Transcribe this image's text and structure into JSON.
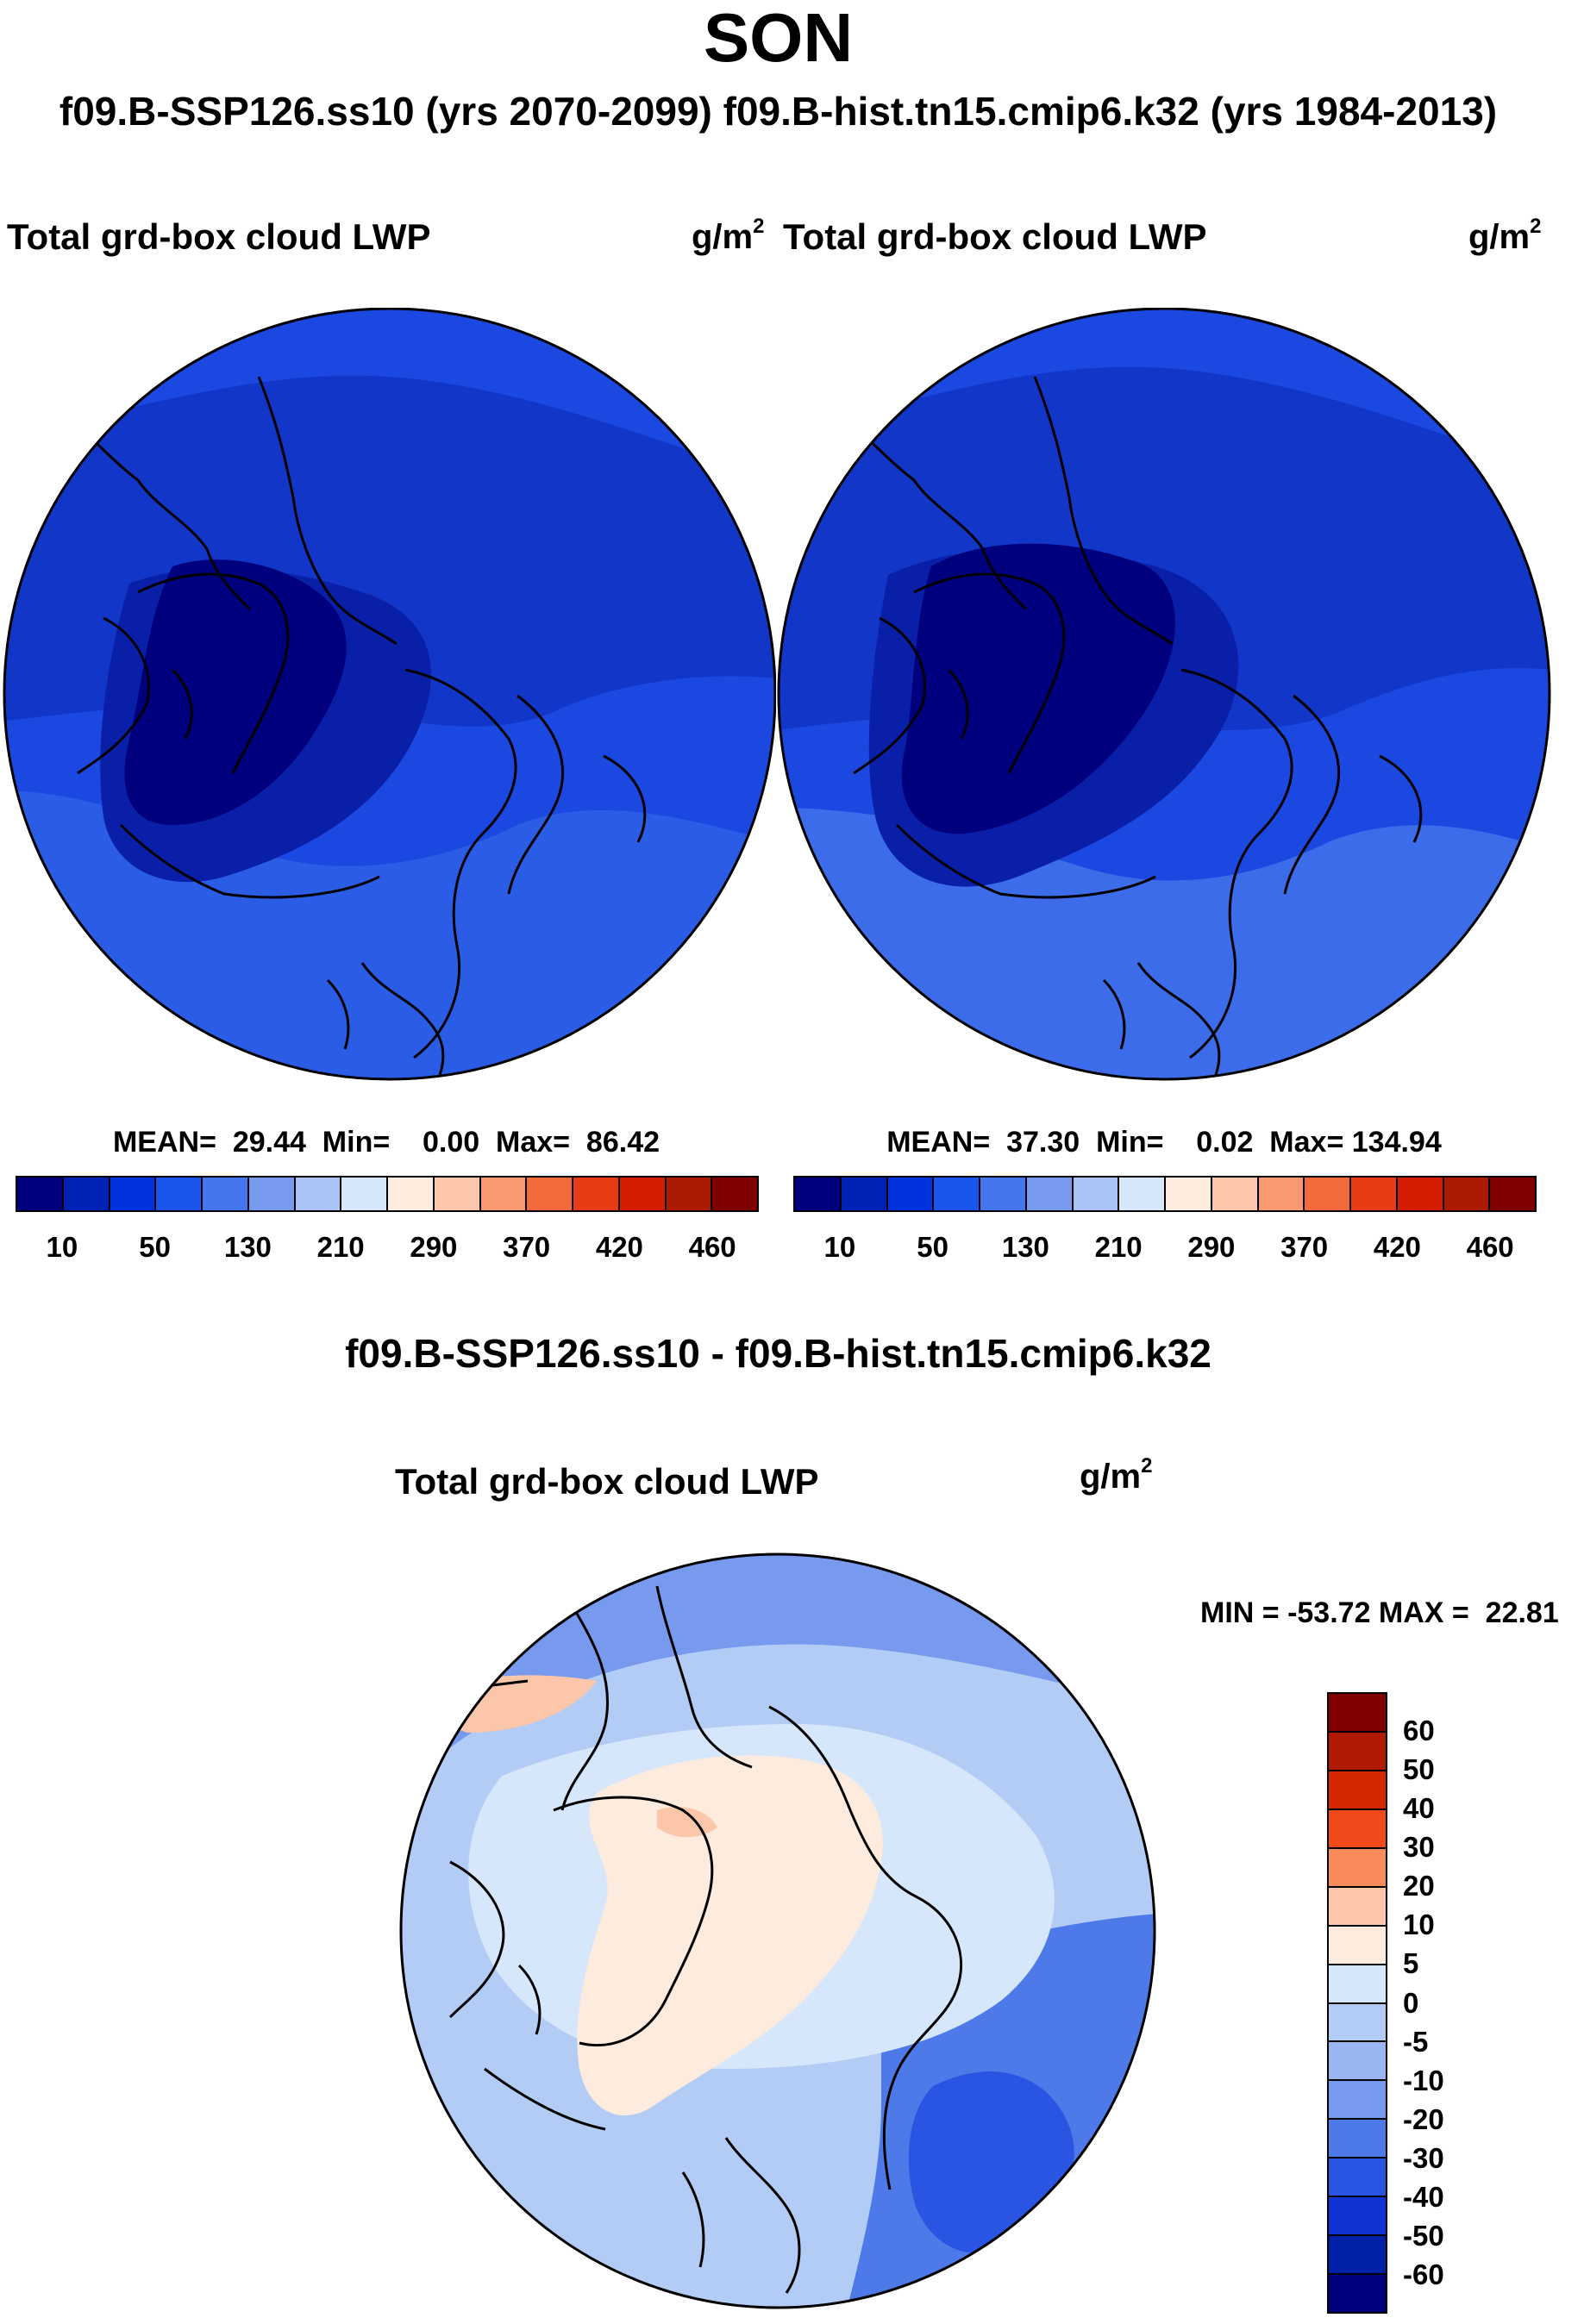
{
  "header": {
    "title": "SON",
    "subtitle": "f09.B-SSP126.ss10 (yrs 2070-2099)  f09.B-hist.tn15.cmip6.k32 (yrs 1984-2013)"
  },
  "panels": [
    {
      "variable_label": "Total grd-box cloud LWP",
      "units_base": "g/m",
      "units_exp": "2",
      "stats": "MEAN=  29.44  Min=    0.00  Max=  86.42"
    },
    {
      "variable_label": "Total grd-box cloud LWP",
      "units_base": "g/m",
      "units_exp": "2",
      "stats": "MEAN=  37.30  Min=    0.02  Max= 134.94"
    }
  ],
  "panel_colorbar": {
    "colors": [
      "#00007f",
      "#0022b4",
      "#0033dd",
      "#1a55ee",
      "#4477ee",
      "#7799ee",
      "#a9c4f5",
      "#d6e6fb",
      "#fdebdd",
      "#fbc6aa",
      "#f79a70",
      "#f26a3c",
      "#e73c16",
      "#d31e04",
      "#ad1a02",
      "#800000"
    ],
    "tick_labels": [
      "10",
      "50",
      "130",
      "210",
      "290",
      "370",
      "420",
      "460"
    ]
  },
  "difference": {
    "title": "f09.B-SSP126.ss10 - f09.B-hist.tn15.cmip6.k32",
    "variable_label": "Total grd-box cloud LWP",
    "units_base": "g/m",
    "units_exp": "2",
    "stats": "MIN = -53.72 MAX =  22.81"
  },
  "diff_colorbar": {
    "colors_top_to_bottom": [
      "#800000",
      "#b01a02",
      "#d62800",
      "#f04a1a",
      "#f98a5a",
      "#fcc6aa",
      "#fdebdd",
      "#d6e6fb",
      "#b3ccf5",
      "#99b6f0",
      "#7799ee",
      "#4d7ae8",
      "#2a55e2",
      "#1133d4",
      "#0020a8",
      "#00007f"
    ],
    "tick_labels": [
      "60",
      "50",
      "40",
      "30",
      "20",
      "10",
      "5",
      "0",
      "-5",
      "-10",
      "-20",
      "-30",
      "-40",
      "-50",
      "-60"
    ]
  },
  "map_colors": {
    "dark_navy": "#00007f",
    "navy": "#0a1fa8",
    "blue": "#0d2ec8",
    "mid_blue": "#1a48e0",
    "light_blue": "#3d6cea",
    "diff_pale_orange": "#fdebdd",
    "diff_salmon": "#fbc6aa",
    "diff_pale_blue": "#d6e6fb",
    "diff_light_blue": "#b3ccf5",
    "diff_blue": "#7799ee",
    "diff_mid_blue": "#4d7ae8",
    "diff_dark_blue": "#2a55e2"
  }
}
